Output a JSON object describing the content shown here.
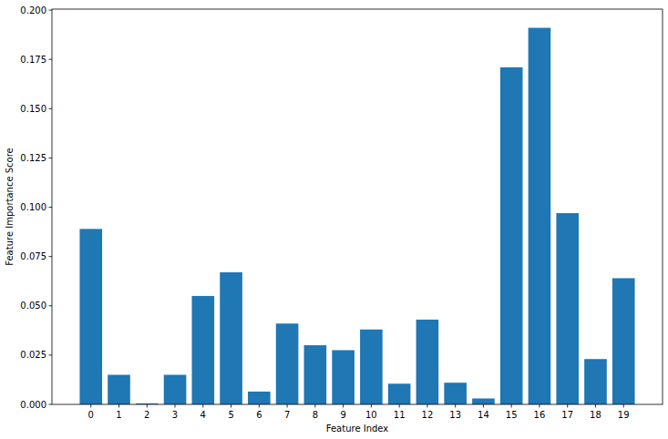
{
  "chart_data": {
    "type": "bar",
    "x_label": "Feature Index",
    "y_label": "Feature Importance Score",
    "categories": [
      "0",
      "1",
      "2",
      "3",
      "4",
      "5",
      "6",
      "7",
      "8",
      "9",
      "10",
      "11",
      "12",
      "13",
      "14",
      "15",
      "16",
      "17",
      "18",
      "19"
    ],
    "values": [
      0.089,
      0.015,
      0.0005,
      0.015,
      0.055,
      0.067,
      0.0065,
      0.041,
      0.03,
      0.0275,
      0.038,
      0.0105,
      0.043,
      0.011,
      0.003,
      0.171,
      0.191,
      0.097,
      0.023,
      0.064
    ],
    "color": "#1f77b4",
    "ylim": [
      0,
      0.2005
    ],
    "yticks": [
      {
        "value": 0,
        "label": "0.000"
      },
      {
        "value": 0.025,
        "label": "0.025"
      },
      {
        "value": 0.05,
        "label": "0.050"
      },
      {
        "value": 0.075,
        "label": "0.075"
      },
      {
        "value": 0.1,
        "label": "0.100"
      },
      {
        "value": 0.125,
        "label": "0.125"
      },
      {
        "value": 0.15,
        "label": "0.150"
      },
      {
        "value": 0.175,
        "label": "0.175"
      },
      {
        "value": 0.2,
        "label": "0.200"
      }
    ],
    "grid": false
  }
}
